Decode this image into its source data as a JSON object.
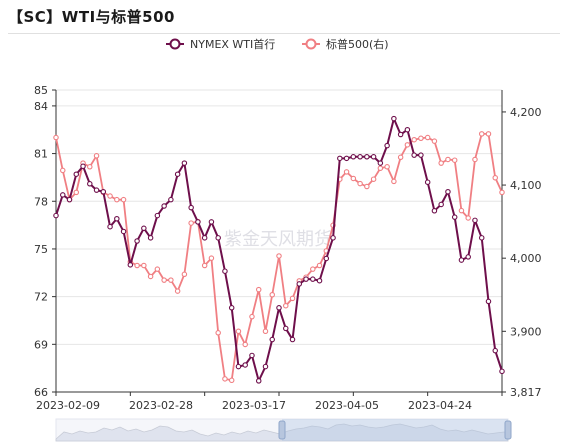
{
  "page": {
    "title": "【SC】WTI与标普500"
  },
  "watermark": "紫金天风期货",
  "colors": {
    "wti": "#6e0f4b",
    "sp": "#f07f83",
    "grid": "#e6e6e6",
    "axis": "#333333"
  },
  "chart_data": {
    "type": "line",
    "title": "【SC】WTI与标普500",
    "legend_position": "top",
    "grid": true,
    "x_tick_labels": [
      "2023-02-09",
      "2023-02-28",
      "2023-03-17",
      "2023-04-05",
      "2023-04-24"
    ],
    "y_left": {
      "ylim": [
        66,
        85
      ],
      "ticks": [
        66,
        69,
        72,
        75,
        78,
        81,
        84,
        85
      ]
    },
    "y_right": {
      "ylim": [
        3817,
        4230
      ],
      "ticks": [
        "3,817",
        "3,900",
        "4,000",
        "4,100",
        "4,200"
      ],
      "tick_values": [
        3817,
        3900,
        4000,
        4100,
        4200
      ]
    },
    "series": [
      {
        "name": "NYMEX WTI首行",
        "axis": "left",
        "values": [
          77.1,
          78.4,
          78.1,
          79.7,
          80.2,
          79.1,
          78.7,
          78.6,
          76.4,
          76.9,
          76.1,
          74,
          75.5,
          76.3,
          75.7,
          77.1,
          77.7,
          78.1,
          79.7,
          80.4,
          77.6,
          76.7,
          75.7,
          76.7,
          75.7,
          73.6,
          71.3,
          67.6,
          67.7,
          68.3,
          66.7,
          67.6,
          69.3,
          71.3,
          70,
          69.3,
          72.8,
          73.1,
          73.1,
          73,
          74.4,
          75.7,
          80.7,
          80.7,
          80.8,
          80.8,
          80.8,
          80.8,
          80.4,
          81.5,
          83.2,
          82.2,
          82.5,
          80.9,
          80.9,
          79.2,
          77.4,
          77.8,
          78.6,
          77,
          74.3,
          74.5,
          76.8,
          75.7,
          71.7,
          68.6,
          67.3
        ]
      },
      {
        "name": "标普500(右)",
        "axis": "right",
        "values": [
          4165,
          4120,
          4080,
          4090,
          4130,
          4125,
          4140,
          4090,
          4085,
          4080,
          4080,
          3995,
          3990,
          3990,
          3975,
          3985,
          3970,
          3970,
          3955,
          3978,
          4048,
          4050,
          3990,
          4000,
          3898,
          3835,
          3833,
          3900,
          3882,
          3920,
          3957,
          3900,
          3950,
          4003,
          3935,
          3945,
          3969,
          3974,
          3985,
          3990,
          4010,
          4045,
          4108,
          4118,
          4109,
          4102,
          4098,
          4108,
          4123,
          4125,
          4105,
          4138,
          4155,
          4162,
          4164,
          4165,
          4160,
          4130,
          4135,
          4134,
          4065,
          4055,
          4135,
          4170,
          4170,
          4110,
          4090
        ]
      }
    ]
  }
}
